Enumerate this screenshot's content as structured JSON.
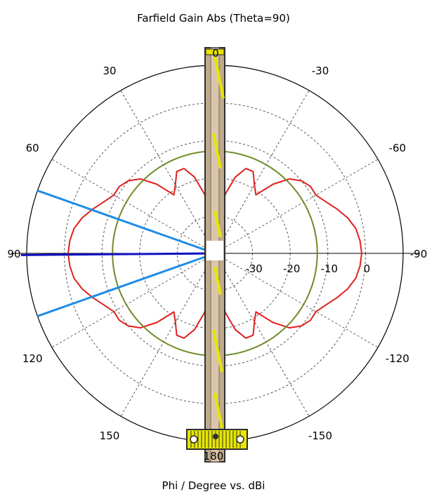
{
  "chart_data": {
    "type": "polar",
    "title": "Farfield Gain Abs (Theta=90)",
    "xlabel": "Phi / Degree vs. dBi",
    "radial_axis": {
      "unit": "dBi",
      "min": -40,
      "max": 10,
      "ticks": [
        -30,
        -20,
        -10,
        0
      ],
      "tick_labels": [
        "-30",
        "-20",
        "-10",
        "0"
      ]
    },
    "angular_axis": {
      "unit": "degree",
      "zero_direction": "top",
      "rotation": "counterclockwise",
      "tick_angles": [
        0,
        30,
        60,
        90,
        120,
        150,
        180,
        -150,
        -120,
        -90,
        -60,
        -30
      ],
      "tick_labels": [
        "0",
        "30",
        "60",
        "90",
        "120",
        "150",
        "180",
        "-150",
        "-120",
        "-90",
        "-60",
        "-30"
      ]
    },
    "grid": true,
    "series": [
      {
        "role": "gain_pattern",
        "color": "#e02020",
        "phi": [
          0,
          5,
          10,
          15,
          20,
          25,
          30,
          35,
          40,
          45,
          50,
          55,
          60,
          65,
          70,
          75,
          80,
          85,
          90,
          95,
          100,
          105,
          110,
          115,
          120,
          125,
          130,
          135,
          140,
          145,
          150,
          155,
          160,
          165,
          170,
          175,
          180
        ],
        "gain": [
          -40,
          -31,
          -24,
          -19,
          -16,
          -16,
          -19,
          -21,
          -16,
          -12,
          -10,
          -9,
          -9,
          -7.5,
          -5.5,
          -3.5,
          -2,
          -1.3,
          -1,
          -1.3,
          -2,
          -3.5,
          -5.5,
          -7.5,
          -9,
          -9,
          -10,
          -12,
          -16,
          -21,
          -19,
          -16,
          -16,
          -19,
          -24,
          -31,
          -40
        ],
        "symmetric": true
      },
      {
        "role": "reference_circle",
        "color": "#6e8c28",
        "gain": -12.8
      },
      {
        "role": "main_lobe_direction",
        "color": "#1010c0",
        "phi": 90.5
      },
      {
        "role": "angular_width_bounds",
        "color": "#1e8ce6",
        "phi": [
          70.5,
          109.5
        ]
      }
    ]
  },
  "antenna_overlay": {
    "name": "antenna-model",
    "colors": {
      "body": "#c0aa8e",
      "edge": "#2e2e2e",
      "accent": "#e6e600"
    }
  }
}
